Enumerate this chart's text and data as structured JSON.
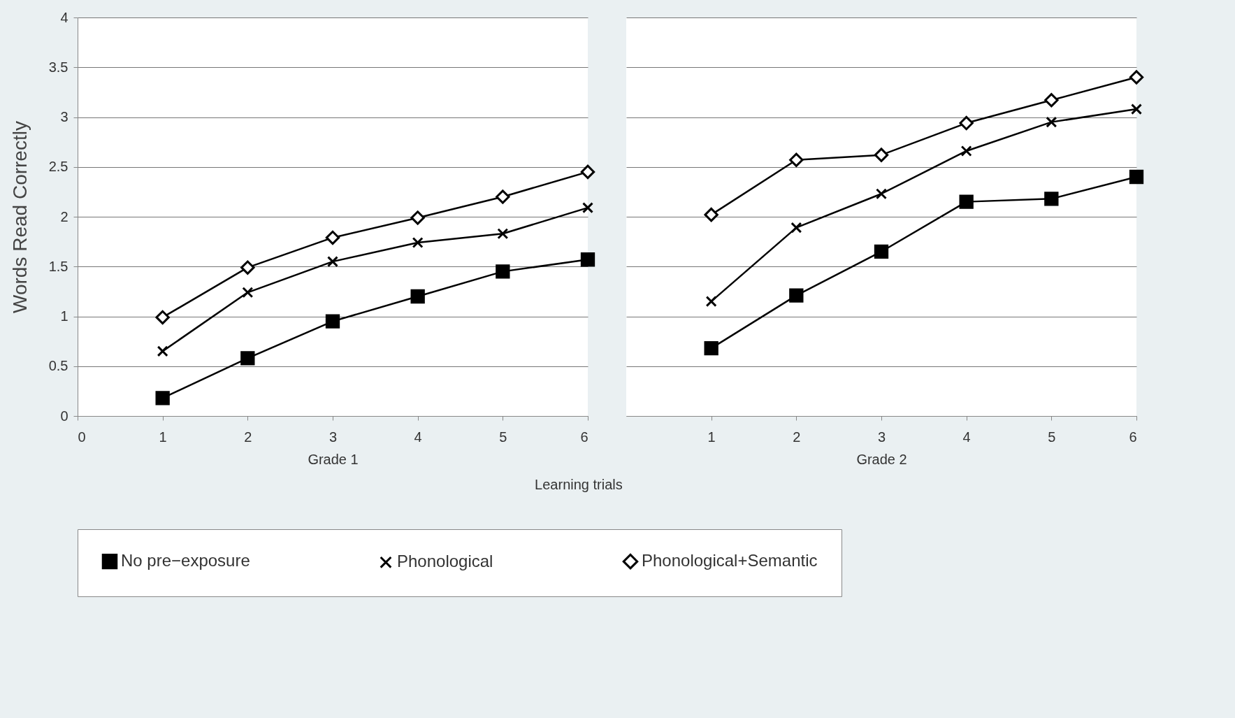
{
  "chart_data": [
    {
      "type": "line",
      "xlabel": "Grade 1",
      "ylabel": "Words Read Correctly",
      "annotations": [
        "Learning trials"
      ],
      "x": [
        1,
        2,
        3,
        4,
        5,
        6
      ],
      "xlim": [
        0,
        6
      ],
      "xticks": [
        0,
        1,
        2,
        3,
        4,
        5,
        6
      ],
      "ylim": [
        0,
        4
      ],
      "yticks": [
        0,
        0.5,
        1,
        1.5,
        2,
        2.5,
        3,
        3.5,
        4
      ],
      "grid": "y",
      "legend": "bottom",
      "line_style": "solid",
      "series": [
        {
          "name": "No pre−exposure",
          "color": "#000000",
          "marker": "square",
          "values": [
            0.18,
            0.58,
            0.95,
            1.2,
            1.45,
            1.57
          ]
        },
        {
          "name": "Phonological",
          "color": "#000000",
          "marker": "cross",
          "values": [
            0.65,
            1.24,
            1.55,
            1.74,
            1.83,
            2.09
          ]
        },
        {
          "name": "Phonological+Semantic",
          "color": "#000000",
          "marker": "diamond",
          "values": [
            0.99,
            1.49,
            1.79,
            1.99,
            2.2,
            2.45
          ]
        }
      ]
    },
    {
      "type": "line",
      "xlabel": "Grade 2",
      "x": [
        1,
        2,
        3,
        4,
        5,
        6
      ],
      "xlim": [
        0,
        6
      ],
      "xticks": [
        1,
        2,
        3,
        4,
        5,
        6
      ],
      "ylim": [
        0,
        4
      ],
      "yticks": [
        0,
        0.5,
        1,
        1.5,
        2,
        2.5,
        3,
        3.5,
        4
      ],
      "grid": "y",
      "legend": "bottom",
      "line_style": "solid",
      "tick_labels": "x",
      "series": [
        {
          "name": "No pre−exposure",
          "color": "#000000",
          "marker": "square",
          "values": [
            0.68,
            1.21,
            1.65,
            2.15,
            2.18,
            2.4
          ]
        },
        {
          "name": "Phonological",
          "color": "#000000",
          "marker": "cross",
          "values": [
            1.15,
            1.89,
            2.23,
            2.66,
            2.95,
            3.08
          ]
        },
        {
          "name": "Phonological+Semantic",
          "color": "#000000",
          "marker": "diamond",
          "values": [
            2.02,
            2.57,
            2.62,
            2.94,
            3.17,
            3.4
          ]
        }
      ]
    }
  ]
}
